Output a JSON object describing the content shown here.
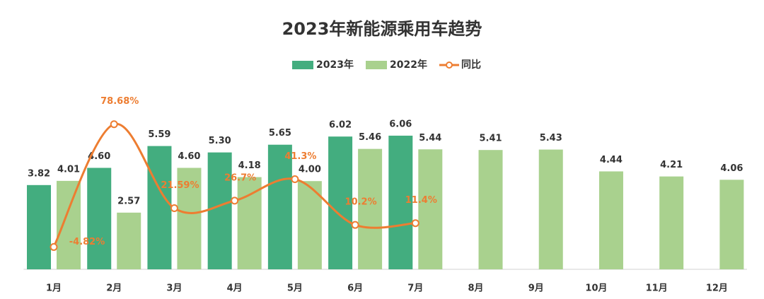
{
  "chart_data": {
    "type": "bar",
    "title": "2023年新能源乘用车趋势",
    "categories": [
      "1月",
      "2月",
      "3月",
      "4月",
      "5月",
      "6月",
      "7月",
      "8月",
      "9月",
      "10月",
      "11月",
      "12月"
    ],
    "series": [
      {
        "name": "2023年",
        "color": "#43ad7f",
        "values": [
          3.82,
          4.6,
          5.59,
          5.3,
          5.65,
          6.02,
          6.06,
          null,
          null,
          null,
          null,
          null
        ],
        "value_labels": [
          "3.82",
          "4.60",
          "5.59",
          "5.30",
          "5.65",
          "6.02",
          "6.06",
          null,
          null,
          null,
          null,
          null
        ]
      },
      {
        "name": "2022年",
        "color": "#a9d18e",
        "values": [
          4.01,
          2.57,
          4.6,
          4.18,
          4.0,
          5.46,
          5.44,
          5.41,
          5.43,
          4.44,
          4.21,
          4.06
        ],
        "value_labels": [
          "4.01",
          "2.57",
          "4.60",
          "4.18",
          "4.00",
          "5.46",
          "5.44",
          "5.41",
          "5.43",
          "4.44",
          "4.21",
          "4.06"
        ]
      },
      {
        "name": "同比",
        "type": "line",
        "axis": "y2",
        "color": "#ed7d31",
        "values": [
          -4.82,
          78.68,
          21.59,
          26.7,
          41.3,
          10.2,
          11.4,
          null,
          null,
          null,
          null,
          null
        ],
        "value_labels": [
          "-4.82%",
          "78.68%",
          "21.59%",
          "26.7%",
          "41.3%",
          "10.2%",
          "11.4%",
          null,
          null,
          null,
          null,
          null
        ]
      }
    ],
    "ylim": [
      0,
      7
    ],
    "y2lim": [
      -20,
      85
    ],
    "legend": "top"
  }
}
